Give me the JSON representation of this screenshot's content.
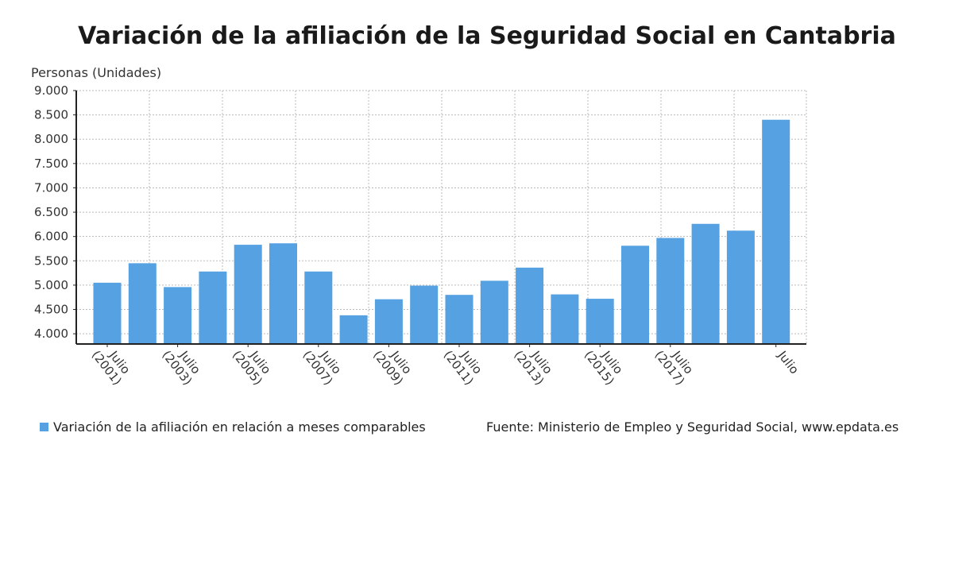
{
  "chart_data": {
    "type": "bar",
    "title": "Variación de la afiliación de la Seguridad Social en Cantabria",
    "ylabel": "Personas (Unidades)",
    "xlabel": "",
    "categories": [
      "Julio (2001)",
      "",
      "Julio (2003)",
      "",
      "Julio (2005)",
      "",
      "Julio (2007)",
      "",
      "Julio (2009)",
      "",
      "Julio (2011)",
      "",
      "Julio (2013)",
      "",
      "Julio (2015)",
      "",
      "Julio (2017)",
      "",
      "",
      "Julio"
    ],
    "series": [
      {
        "name": "Variación de la afiliación en relación a meses comparables",
        "color": "#55a1e2",
        "values": [
          5050,
          5450,
          4960,
          5280,
          5830,
          5860,
          5280,
          4380,
          4710,
          4990,
          4800,
          5090,
          5360,
          4810,
          4720,
          5810,
          5970,
          6260,
          6120,
          8400
        ]
      }
    ],
    "ylim": [
      3790,
      9000
    ],
    "yticks": [
      4000,
      4500,
      5000,
      5500,
      6000,
      6500,
      7000,
      7500,
      8000,
      8500,
      9000
    ],
    "ytick_labels": [
      "4.000",
      "4.500",
      "5.000",
      "5.500",
      "6.000",
      "6.500",
      "7.000",
      "7.500",
      "8.000",
      "8.500",
      "9.000"
    ],
    "grid": true,
    "legend_position": "bottom-left",
    "source": "Fuente: Ministerio de Empleo y Seguridad Social, www.epdata.es"
  }
}
